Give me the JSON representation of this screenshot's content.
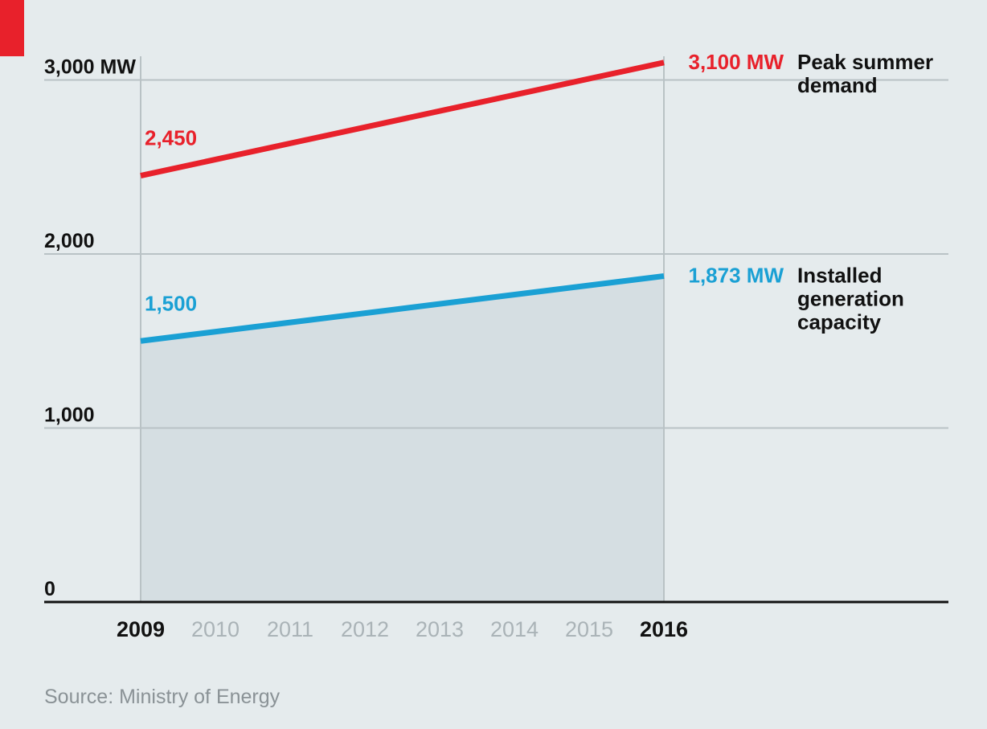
{
  "chart_data": {
    "type": "line",
    "x": [
      2009,
      2010,
      2011,
      2012,
      2013,
      2014,
      2015,
      2016
    ],
    "bold_x": [
      2009,
      2016
    ],
    "ylim": [
      0,
      3000
    ],
    "y_ticks": [
      {
        "value": 0,
        "label": "0"
      },
      {
        "value": 1000,
        "label": "1,000"
      },
      {
        "value": 2000,
        "label": "2,000"
      },
      {
        "value": 3000,
        "label": "3,000 MW"
      }
    ],
    "series": [
      {
        "key": "demand",
        "name_lines": [
          "Peak summer",
          "demand"
        ],
        "color": "#e8212b",
        "start": {
          "x": 2009,
          "y": 2450,
          "label": "2,450"
        },
        "end": {
          "x": 2016,
          "y": 3100,
          "label": "3,100 MW"
        }
      },
      {
        "key": "capacity",
        "name_lines": [
          "Installed",
          "generation",
          "capacity"
        ],
        "color": "#1aa0d4",
        "fill": "#d5dee2",
        "start": {
          "x": 2009,
          "y": 1500,
          "label": "1,500"
        },
        "end": {
          "x": 2016,
          "y": 1873,
          "label": "1,873 MW"
        }
      }
    ],
    "source": "Source: Ministry of Energy",
    "grid": true,
    "colors": {
      "accent": "#e8212b",
      "background": "#e5ebed",
      "grid": "#b9c2c5",
      "axis": "#111111"
    }
  }
}
